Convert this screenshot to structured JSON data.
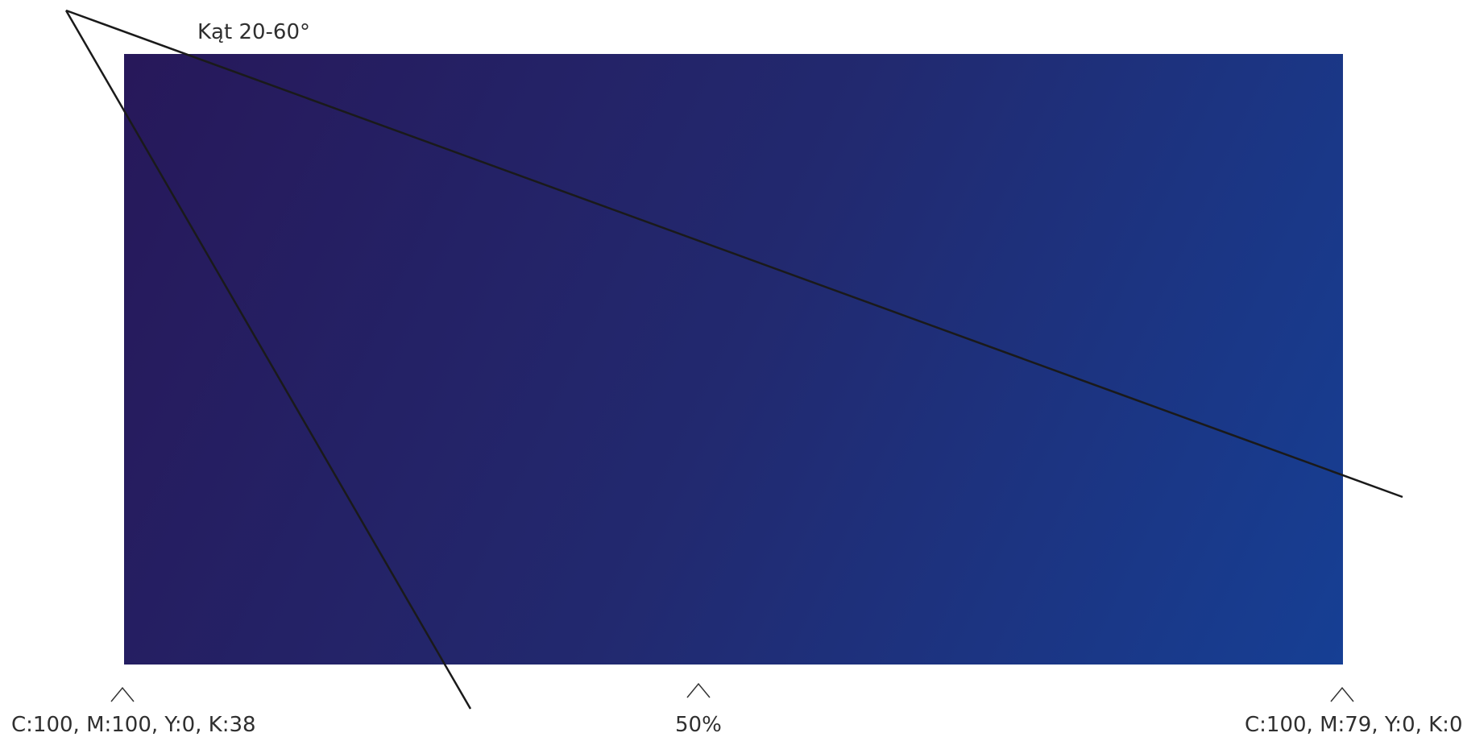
{
  "angle_label": "Kąt 20-60°",
  "gradient": {
    "start_color": "#27185a",
    "end_color": "#163f94",
    "midpoint_label": "50%"
  },
  "stops": {
    "start_label": "C:100, M:100, Y:0, K:38",
    "end_label": "C:100, M:79, Y:0, K:0"
  }
}
